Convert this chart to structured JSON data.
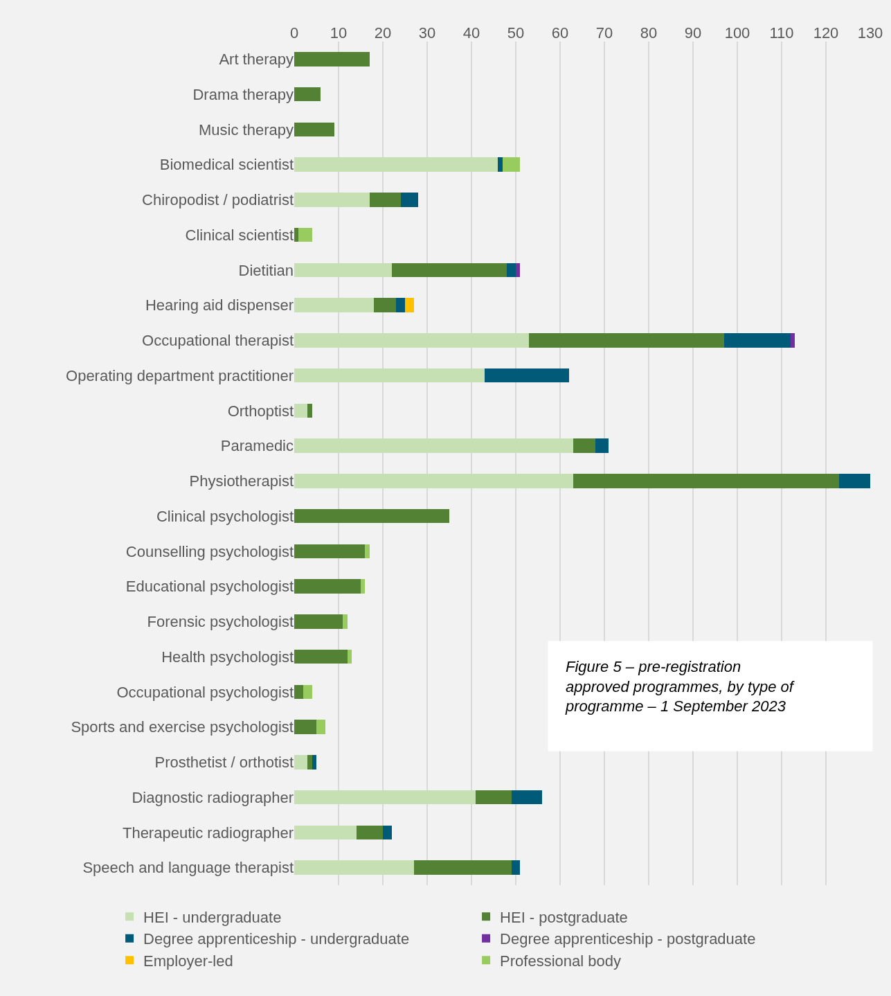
{
  "chart_data": {
    "type": "bar",
    "orientation": "horizontal",
    "stacked": true,
    "categories": [
      "Art therapy",
      "Drama therapy",
      "Music therapy",
      "Biomedical scientist",
      "Chiropodist / podiatrist",
      "Clinical scientist",
      "Dietitian",
      "Hearing aid dispenser",
      "Occupational therapist",
      "Operating department practitioner",
      "Orthoptist",
      "Paramedic",
      "Physiotherapist",
      "Clinical psychologist",
      "Counselling psychologist",
      "Educational psychologist",
      "Forensic psychologist",
      "Health psychologist",
      "Occupational psychologist",
      "Sports and exercise psychologist",
      "Prosthetist / orthotist",
      "Diagnostic radiographer",
      "Therapeutic radiographer",
      "Speech and language therapist"
    ],
    "series": [
      {
        "name": "HEI - undergraduate",
        "color": "#c6e0b4",
        "values": [
          0,
          0,
          0,
          46,
          17,
          0,
          22,
          18,
          53,
          43,
          3,
          63,
          63,
          0,
          0,
          0,
          0,
          0,
          0,
          0,
          3,
          41,
          14,
          27
        ]
      },
      {
        "name": "HEI - postgraduate",
        "color": "#548235",
        "values": [
          17,
          6,
          9,
          0,
          7,
          1,
          26,
          5,
          44,
          0,
          1,
          5,
          60,
          35,
          16,
          15,
          11,
          12,
          2,
          5,
          1,
          8,
          6,
          22
        ]
      },
      {
        "name": "Degree apprenticeship - undergraduate",
        "color": "#005a78",
        "values": [
          0,
          0,
          0,
          1,
          4,
          0,
          2,
          2,
          15,
          19,
          0,
          3,
          7,
          0,
          0,
          0,
          0,
          0,
          0,
          0,
          1,
          7,
          2,
          2
        ]
      },
      {
        "name": "Degree apprenticeship - postgraduate",
        "color": "#7030a0",
        "values": [
          0,
          0,
          0,
          0,
          0,
          0,
          1,
          0,
          1,
          0,
          0,
          0,
          0,
          0,
          0,
          0,
          0,
          0,
          0,
          0,
          0,
          0,
          0,
          0
        ]
      },
      {
        "name": "Employer-led",
        "color": "#ffc000",
        "values": [
          0,
          0,
          0,
          0,
          0,
          0,
          0,
          2,
          0,
          0,
          0,
          0,
          0,
          0,
          0,
          0,
          0,
          0,
          0,
          0,
          0,
          0,
          0,
          0
        ]
      },
      {
        "name": "Professional body",
        "color": "#99cc5f",
        "values": [
          0,
          0,
          0,
          4,
          0,
          3,
          0,
          0,
          0,
          0,
          0,
          0,
          0,
          0,
          1,
          1,
          1,
          1,
          2,
          2,
          0,
          0,
          0,
          0
        ]
      }
    ],
    "xlim": [
      0,
      130
    ],
    "xticks": [
      0,
      10,
      20,
      30,
      40,
      50,
      60,
      70,
      80,
      90,
      100,
      110,
      120,
      130
    ],
    "grid": "x",
    "legend": "bottom",
    "annotations": [
      "Figure 5 – pre-registration approved programmes, by type of programme – 1 September 2023"
    ]
  }
}
